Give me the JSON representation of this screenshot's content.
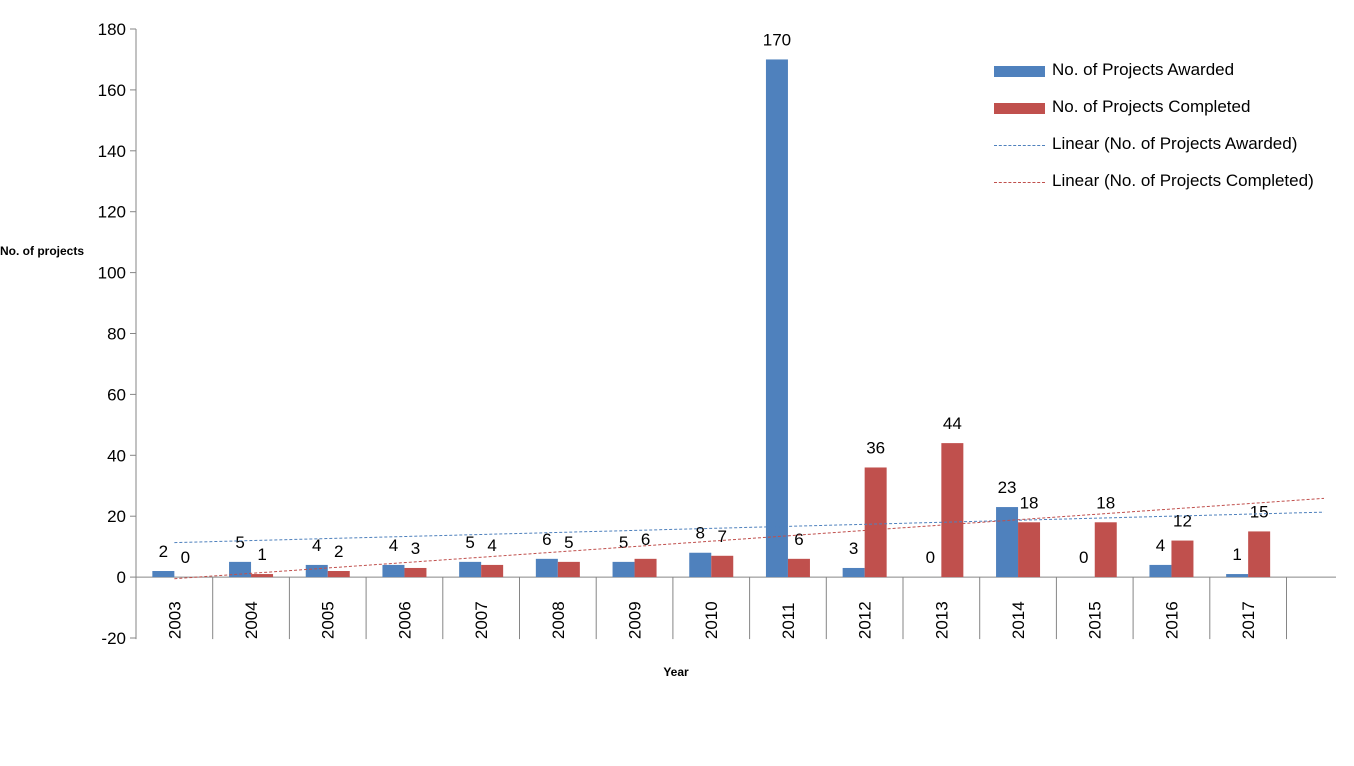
{
  "chart_data": {
    "type": "bar",
    "title": "",
    "xlabel": "Year",
    "ylabel": "No. of projects",
    "ylim": [
      -20,
      180
    ],
    "yticks": [
      -20,
      0,
      20,
      40,
      60,
      80,
      100,
      120,
      140,
      160,
      180
    ],
    "categories": [
      "2003",
      "2004",
      "2005",
      "2006",
      "2007",
      "2008",
      "2009",
      "2010",
      "2011",
      "2012",
      "2013",
      "2014",
      "2015",
      "2016",
      "2017"
    ],
    "series": [
      {
        "name": "No. of Projects Awarded",
        "color": "#4f81bd",
        "values": [
          2,
          5,
          4,
          4,
          5,
          6,
          5,
          8,
          170,
          3,
          0,
          23,
          0,
          4,
          1
        ]
      },
      {
        "name": "No. of Projects Completed",
        "color": "#c0504d",
        "values": [
          0,
          1,
          2,
          3,
          4,
          5,
          6,
          7,
          6,
          36,
          44,
          18,
          18,
          12,
          15
        ]
      }
    ],
    "trendlines": [
      {
        "name": "Linear (No. of Projects Awarded)",
        "color": "#4f81bd",
        "style": "dashed"
      },
      {
        "name": "Linear (No. of Projects Completed)",
        "color": "#c0504d",
        "style": "dashed"
      }
    ],
    "legend_position": "top-right"
  }
}
